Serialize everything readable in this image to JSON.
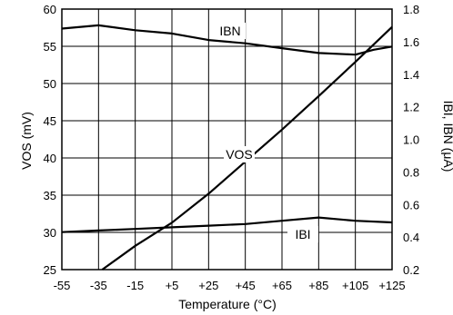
{
  "chart_data": {
    "type": "line",
    "xlabel": "Temperature (°C)",
    "ylabel_left": "VOS (mV)",
    "ylabel_right": "IBI, IBN (μA)",
    "xlim": [
      -55,
      125
    ],
    "ylim_left": [
      25,
      60
    ],
    "ylim_right": [
      0.2,
      1.8
    ],
    "grid": true,
    "x_ticks": [
      -55,
      -35,
      -15,
      5,
      25,
      45,
      65,
      85,
      105,
      125
    ],
    "x_tick_labels": [
      "-55",
      "-35",
      "-15",
      "+5",
      "+25",
      "+45",
      "+65",
      "+85",
      "+105",
      "+125"
    ],
    "y_left_ticks": [
      25,
      30,
      35,
      40,
      45,
      50,
      55,
      60
    ],
    "y_left_tick_labels": [
      "25",
      "30",
      "35",
      "40",
      "45",
      "50",
      "55",
      "60"
    ],
    "y_right_ticks": [
      0.2,
      0.4,
      0.6,
      0.8,
      1.0,
      1.2,
      1.4,
      1.6,
      1.8
    ],
    "y_right_tick_labels": [
      "0.2",
      "0.4",
      "0.6",
      "0.8",
      "1.0",
      "1.2",
      "1.4",
      "1.6",
      "1.8"
    ],
    "series": [
      {
        "name": "IBN",
        "axis": "right",
        "x": [
          -55,
          -35,
          -15,
          5,
          25,
          45,
          65,
          85,
          105,
          115,
          125
        ],
        "y": [
          1.68,
          1.7,
          1.67,
          1.65,
          1.61,
          1.59,
          1.56,
          1.53,
          1.52,
          1.55,
          1.57
        ]
      },
      {
        "name": "VOS",
        "axis": "left",
        "x": [
          -33,
          -15,
          5,
          25,
          45,
          65,
          85,
          105,
          125
        ],
        "y": [
          25,
          28.2,
          31.3,
          35.2,
          39.5,
          43.8,
          48.3,
          52.9,
          57.6
        ]
      },
      {
        "name": "IBI",
        "axis": "right",
        "x": [
          -55,
          -35,
          -15,
          5,
          25,
          45,
          65,
          85,
          105,
          125
        ],
        "y": [
          0.43,
          0.44,
          0.45,
          0.46,
          0.47,
          0.48,
          0.5,
          0.52,
          0.5,
          0.49
        ]
      }
    ]
  }
}
